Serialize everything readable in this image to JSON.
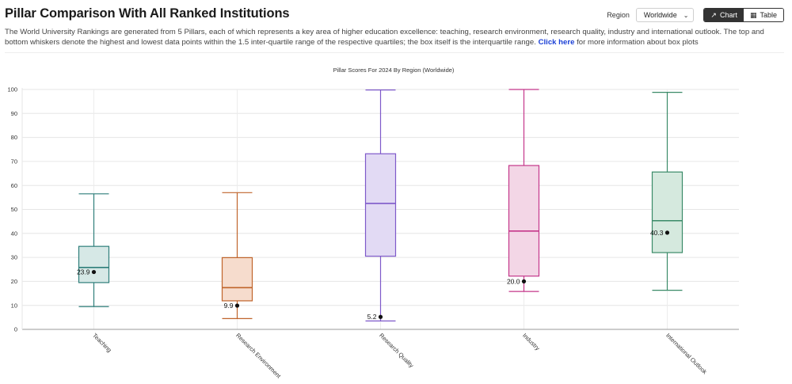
{
  "header": {
    "title": "Pillar Comparison With All Ranked Institutions",
    "description": "The World University Rankings are generated from 5 Pillars, each of which represents a key area of higher education excellence: teaching, research environment, research quality, industry and international outlook. The top and bottom whiskers denote the highest and lowest data points within the 1.5 inter-quartile range of the respective quartiles; the box itself is the interquartile range.",
    "link_text": "Click here",
    "link_suffix": "for more information about box plots"
  },
  "controls": {
    "region_label": "Region",
    "region_value": "Worldwide",
    "chart_label": "Chart",
    "table_label": "Table"
  },
  "chart_data": {
    "type": "boxplot",
    "title": "Pillar Scores For 2024 By Region (Worldwide)",
    "xlabel": "",
    "ylabel": "",
    "ylim": [
      0,
      100
    ],
    "yticks": [
      0,
      10,
      20,
      30,
      40,
      50,
      60,
      70,
      80,
      90,
      100
    ],
    "grid": true,
    "categories": [
      "Teaching",
      "Research Environment",
      "Research Quality",
      "Industry",
      "International Outlook"
    ],
    "boxes": [
      {
        "min": 9.5,
        "q1": 19.5,
        "median": 25.8,
        "q3": 34.6,
        "max": 56.5,
        "point": 23.9,
        "point_label": "23.9",
        "color": "#2e7e7a",
        "fill": "#d6e8e6"
      },
      {
        "min": 4.5,
        "q1": 11.9,
        "median": 17.4,
        "q3": 29.9,
        "max": 57.0,
        "point": 9.9,
        "point_label": "9.9",
        "color": "#c0642b",
        "fill": "#f6dccd"
      },
      {
        "min": 3.5,
        "q1": 30.5,
        "median": 52.5,
        "q3": 73.2,
        "max": 99.8,
        "point": 5.2,
        "point_label": "5.2",
        "color": "#7e59c9",
        "fill": "#e2daf4"
      },
      {
        "min": 15.8,
        "q1": 22.2,
        "median": 41.0,
        "q3": 68.3,
        "max": 100.0,
        "point": 20.0,
        "point_label": "20.0",
        "color": "#c4368a",
        "fill": "#f3d6e6"
      },
      {
        "min": 16.3,
        "q1": 32.0,
        "median": 45.3,
        "q3": 65.6,
        "max": 98.8,
        "point": 40.3,
        "point_label": "40.3",
        "color": "#3a8a68",
        "fill": "#d5e9de"
      }
    ]
  }
}
